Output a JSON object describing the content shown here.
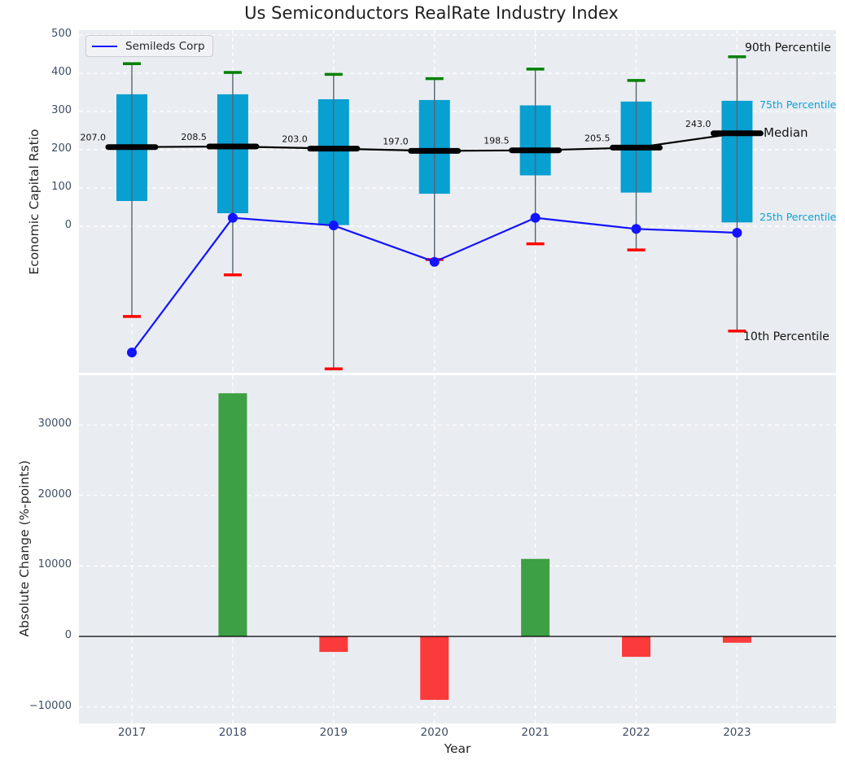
{
  "title": "Us Semiconductors RealRate Industry Index",
  "legend": {
    "label": "Semileds Corp"
  },
  "annotations": {
    "p90": "90th Percentile",
    "p75": "75th Percentile",
    "median": "Median",
    "p25": "25th Percentile",
    "p10": "10th Percentile"
  },
  "axes": {
    "top": {
      "ylabel": "Economic Capital Ratio",
      "ytick_values": [
        500,
        400,
        300,
        200,
        100,
        0
      ],
      "ytick_labels": [
        "500",
        "400",
        "300",
        "200",
        "100",
        "0"
      ]
    },
    "bottom": {
      "ylabel": "Absolute Change (%-points)",
      "xlabel": "Year",
      "ytick_values": [
        30000,
        20000,
        10000,
        0,
        -10000
      ],
      "ytick_labels": [
        "30000",
        "20000",
        "10000",
        "0",
        "−10000"
      ]
    }
  },
  "colors": {
    "panel_bg": "#e9edf1",
    "grid": "#ffffff",
    "box_fill": "#089fd1",
    "whisker": "#5a646e",
    "cap_90": "#008000",
    "cap_10": "#ff0000",
    "median_line": "#000000",
    "company_line": "#1313ff",
    "bar_positive": "#3da044",
    "bar_negative": "#fb3b3b",
    "zero_line": "#000000",
    "annotation_cyan": "#0fa0d4",
    "tick_label": "#3e4d63"
  },
  "chart_data": [
    {
      "type": "box",
      "title": "Us Semiconductors RealRate Industry Index",
      "ylabel": "Economic Capital Ratio",
      "legend_entry": "Semileds Corp",
      "grid": true,
      "categories": [
        "2017",
        "2018",
        "2019",
        "2020",
        "2021",
        "2022",
        "2023"
      ],
      "series": {
        "p90": [
          425,
          402,
          397,
          386,
          411,
          381,
          443
        ],
        "p75": [
          345,
          345,
          332,
          330,
          316,
          326,
          328
        ],
        "median": [
          207.0,
          208.5,
          203.0,
          197.0,
          198.5,
          205.5,
          243.0
        ],
        "p25": [
          66,
          34,
          3,
          85,
          133,
          88,
          10
        ],
        "p10": [
          -236,
          -127,
          -373,
          -87,
          -46,
          -62,
          -274
        ],
        "semileds_corp": [
          -330,
          22,
          2,
          -93,
          22,
          -7,
          -17
        ]
      },
      "median_labels": [
        "207.0",
        "208.5",
        "203.0",
        "197.0",
        "198.5",
        "205.5",
        "243.0"
      ],
      "ylim": [
        -380,
        508
      ],
      "ytick_values": [
        0,
        100,
        200,
        300,
        400,
        500
      ]
    },
    {
      "type": "bar",
      "ylabel": "Absolute Change (%-points)",
      "xlabel": "Year",
      "grid": true,
      "categories": [
        "2017",
        "2018",
        "2019",
        "2020",
        "2021",
        "2022",
        "2023"
      ],
      "values": [
        null,
        34500,
        -2200,
        -9000,
        11000,
        -2900,
        -900
      ],
      "ylim": [
        -12350,
        37050
      ],
      "ytick_values": [
        -10000,
        0,
        10000,
        20000,
        30000
      ]
    }
  ]
}
